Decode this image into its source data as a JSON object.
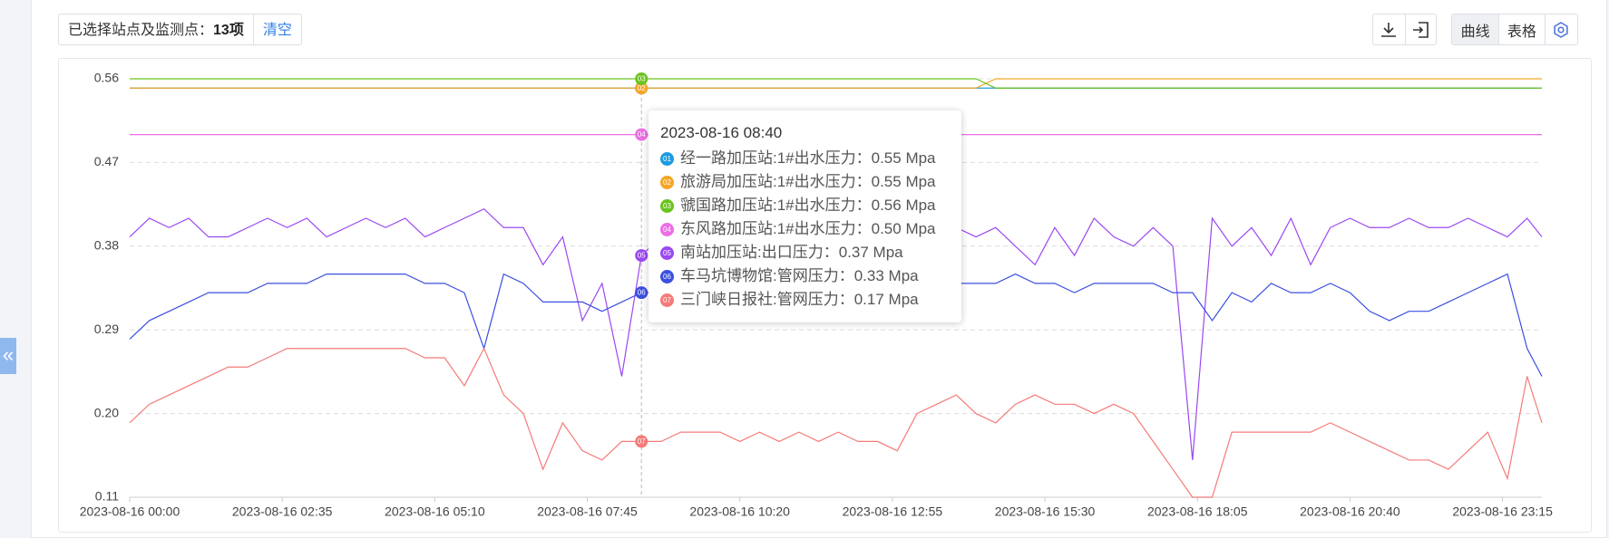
{
  "toolbar": {
    "selected_label": "已选择站点及监测点：",
    "selected_count": "13项",
    "clear": "清空",
    "view_curve": "曲线",
    "view_table": "表格"
  },
  "collapse": "«",
  "tooltip": {
    "title": "2023-08-16 08:40",
    "items": [
      "经一路加压站:1#出水压力：0.55 Mpa",
      "旅游局加压站:1#出水压力：0.55 Mpa",
      "虢国路加压站:1#出水压力：0.56 Mpa",
      "东风路加压站:1#出水压力：0.50 Mpa",
      "南站加压站:出口压力：0.37 Mpa",
      "车马坑博物馆:管网压力：0.33 Mpa",
      "三门峡日报社:管网压力：0.17 Mpa"
    ]
  },
  "chart_data": {
    "type": "line",
    "grid": true,
    "x": [
      "2023-08-16 00:00",
      "2023-08-16 00:20",
      "2023-08-16 00:40",
      "2023-08-16 01:00",
      "2023-08-16 01:20",
      "2023-08-16 01:40",
      "2023-08-16 02:00",
      "2023-08-16 02:20",
      "2023-08-16 02:40",
      "2023-08-16 03:00",
      "2023-08-16 03:20",
      "2023-08-16 03:40",
      "2023-08-16 04:00",
      "2023-08-16 04:20",
      "2023-08-16 04:40",
      "2023-08-16 05:00",
      "2023-08-16 05:20",
      "2023-08-16 05:40",
      "2023-08-16 06:00",
      "2023-08-16 06:20",
      "2023-08-16 06:40",
      "2023-08-16 07:00",
      "2023-08-16 07:20",
      "2023-08-16 07:40",
      "2023-08-16 08:00",
      "2023-08-16 08:20",
      "2023-08-16 08:40",
      "2023-08-16 09:00",
      "2023-08-16 09:20",
      "2023-08-16 09:40",
      "2023-08-16 10:00",
      "2023-08-16 10:20",
      "2023-08-16 10:40",
      "2023-08-16 11:00",
      "2023-08-16 11:20",
      "2023-08-16 11:40",
      "2023-08-16 12:00",
      "2023-08-16 12:20",
      "2023-08-16 12:40",
      "2023-08-16 13:00",
      "2023-08-16 13:20",
      "2023-08-16 13:40",
      "2023-08-16 14:00",
      "2023-08-16 14:20",
      "2023-08-16 14:40",
      "2023-08-16 15:00",
      "2023-08-16 15:20",
      "2023-08-16 15:40",
      "2023-08-16 16:00",
      "2023-08-16 16:20",
      "2023-08-16 16:40",
      "2023-08-16 17:00",
      "2023-08-16 17:20",
      "2023-08-16 17:40",
      "2023-08-16 18:00",
      "2023-08-16 18:20",
      "2023-08-16 18:40",
      "2023-08-16 19:00",
      "2023-08-16 19:20",
      "2023-08-16 19:40",
      "2023-08-16 20:00",
      "2023-08-16 20:20",
      "2023-08-16 20:40",
      "2023-08-16 21:00",
      "2023-08-16 21:20",
      "2023-08-16 21:40",
      "2023-08-16 22:00",
      "2023-08-16 22:20",
      "2023-08-16 22:40",
      "2023-08-16 23:00",
      "2023-08-16 23:20",
      "2023-08-16 23:40",
      "2023-08-16 23:55"
    ],
    "xlim": [
      "2023-08-16 00:00",
      "2023-08-16 23:55"
    ],
    "xticks": [
      "2023-08-16 00:00",
      "2023-08-16 02:35",
      "2023-08-16 05:10",
      "2023-08-16 07:45",
      "2023-08-16 10:20",
      "2023-08-16 12:55",
      "2023-08-16 15:30",
      "2023-08-16 18:05",
      "2023-08-16 20:40",
      "2023-08-16 23:15"
    ],
    "ylim": [
      0.11,
      0.56
    ],
    "yticks": [
      {
        "value": 0.11,
        "label": "0.11"
      },
      {
        "value": 0.2,
        "label": "0.20"
      },
      {
        "value": 0.29,
        "label": "0.29"
      },
      {
        "value": 0.38,
        "label": "0.38"
      },
      {
        "value": 0.47,
        "label": "0.47"
      },
      {
        "value": 0.56,
        "label": "0.56"
      }
    ],
    "series": [
      {
        "marker": "01",
        "color": "#1e9be0",
        "values": [
          0.55,
          0.55,
          0.55,
          0.55,
          0.55,
          0.55,
          0.55,
          0.55,
          0.55,
          0.55,
          0.55,
          0.55,
          0.55,
          0.55,
          0.55,
          0.55,
          0.55,
          0.55,
          0.55,
          0.55,
          0.55,
          0.55,
          0.55,
          0.55,
          0.55,
          0.55,
          0.55,
          0.55,
          0.55,
          0.55,
          0.55,
          0.55,
          0.55,
          0.55,
          0.55,
          0.55,
          0.55,
          0.55,
          0.55,
          0.55,
          0.55,
          0.55,
          0.55,
          0.55,
          0.55,
          0.55,
          0.55,
          0.55,
          0.55,
          0.55,
          0.55,
          0.55,
          0.55,
          0.55,
          0.55,
          0.55,
          0.55,
          0.55,
          0.55,
          0.55,
          0.55,
          0.55,
          0.55,
          0.55,
          0.55,
          0.55,
          0.55,
          0.55,
          0.55,
          0.55,
          0.55,
          0.55,
          0.55
        ]
      },
      {
        "marker": "02",
        "color": "#f5a623",
        "values": [
          0.55,
          0.55,
          0.55,
          0.55,
          0.55,
          0.55,
          0.55,
          0.55,
          0.55,
          0.55,
          0.55,
          0.55,
          0.55,
          0.55,
          0.55,
          0.55,
          0.55,
          0.55,
          0.55,
          0.55,
          0.55,
          0.55,
          0.55,
          0.55,
          0.55,
          0.55,
          0.55,
          0.55,
          0.55,
          0.55,
          0.55,
          0.55,
          0.55,
          0.55,
          0.55,
          0.55,
          0.55,
          0.55,
          0.55,
          0.55,
          0.55,
          0.55,
          0.55,
          0.55,
          0.56,
          0.56,
          0.56,
          0.56,
          0.56,
          0.56,
          0.56,
          0.56,
          0.56,
          0.56,
          0.56,
          0.56,
          0.56,
          0.56,
          0.56,
          0.56,
          0.56,
          0.56,
          0.56,
          0.56,
          0.56,
          0.56,
          0.56,
          0.56,
          0.56,
          0.56,
          0.56,
          0.56,
          0.56
        ]
      },
      {
        "marker": "03",
        "color": "#6ac31e",
        "values": [
          0.56,
          0.56,
          0.56,
          0.56,
          0.56,
          0.56,
          0.56,
          0.56,
          0.56,
          0.56,
          0.56,
          0.56,
          0.56,
          0.56,
          0.56,
          0.56,
          0.56,
          0.56,
          0.56,
          0.56,
          0.56,
          0.56,
          0.56,
          0.56,
          0.56,
          0.56,
          0.56,
          0.56,
          0.56,
          0.56,
          0.56,
          0.56,
          0.56,
          0.56,
          0.56,
          0.56,
          0.56,
          0.56,
          0.56,
          0.56,
          0.56,
          0.56,
          0.56,
          0.56,
          0.55,
          0.55,
          0.55,
          0.55,
          0.55,
          0.55,
          0.55,
          0.55,
          0.55,
          0.55,
          0.55,
          0.55,
          0.55,
          0.55,
          0.55,
          0.55,
          0.55,
          0.55,
          0.55,
          0.55,
          0.55,
          0.55,
          0.55,
          0.55,
          0.55,
          0.55,
          0.55,
          0.55,
          0.55
        ]
      },
      {
        "marker": "04",
        "color": "#ec6ee4",
        "values": [
          0.5,
          0.5,
          0.5,
          0.5,
          0.5,
          0.5,
          0.5,
          0.5,
          0.5,
          0.5,
          0.5,
          0.5,
          0.5,
          0.5,
          0.5,
          0.5,
          0.5,
          0.5,
          0.5,
          0.5,
          0.5,
          0.5,
          0.5,
          0.5,
          0.5,
          0.5,
          0.5,
          0.5,
          0.5,
          0.5,
          0.5,
          0.5,
          0.5,
          0.5,
          0.5,
          0.5,
          0.5,
          0.5,
          0.5,
          0.5,
          0.5,
          0.5,
          0.5,
          0.5,
          0.5,
          0.5,
          0.5,
          0.5,
          0.5,
          0.5,
          0.5,
          0.5,
          0.5,
          0.5,
          0.5,
          0.5,
          0.5,
          0.5,
          0.5,
          0.5,
          0.5,
          0.5,
          0.5,
          0.5,
          0.5,
          0.5,
          0.5,
          0.5,
          0.5,
          0.5,
          0.5,
          0.5,
          0.5
        ]
      },
      {
        "marker": "05",
        "color": "#9b47f2",
        "values": [
          0.39,
          0.41,
          0.4,
          0.41,
          0.39,
          0.39,
          0.4,
          0.41,
          0.4,
          0.41,
          0.39,
          0.4,
          0.41,
          0.4,
          0.41,
          0.39,
          0.4,
          0.41,
          0.42,
          0.4,
          0.4,
          0.36,
          0.39,
          0.3,
          0.34,
          0.24,
          0.37,
          0.39,
          0.4,
          0.41,
          0.39,
          0.4,
          0.39,
          0.41,
          0.4,
          0.39,
          0.4,
          0.41,
          0.39,
          0.4,
          0.41,
          0.39,
          0.4,
          0.39,
          0.4,
          0.38,
          0.36,
          0.4,
          0.37,
          0.41,
          0.39,
          0.38,
          0.4,
          0.38,
          0.15,
          0.41,
          0.38,
          0.4,
          0.37,
          0.41,
          0.36,
          0.4,
          0.41,
          0.4,
          0.4,
          0.41,
          0.4,
          0.4,
          0.41,
          0.4,
          0.39,
          0.41,
          0.39
        ]
      },
      {
        "marker": "06",
        "color": "#3b4fe0",
        "values": [
          0.28,
          0.3,
          0.31,
          0.32,
          0.33,
          0.33,
          0.33,
          0.34,
          0.34,
          0.34,
          0.35,
          0.35,
          0.35,
          0.35,
          0.35,
          0.34,
          0.34,
          0.33,
          0.27,
          0.35,
          0.34,
          0.32,
          0.32,
          0.32,
          0.31,
          0.32,
          0.33,
          0.33,
          0.34,
          0.34,
          0.34,
          0.33,
          0.34,
          0.34,
          0.35,
          0.34,
          0.34,
          0.34,
          0.33,
          0.34,
          0.34,
          0.34,
          0.34,
          0.34,
          0.34,
          0.35,
          0.34,
          0.34,
          0.33,
          0.34,
          0.34,
          0.34,
          0.34,
          0.33,
          0.33,
          0.3,
          0.33,
          0.32,
          0.34,
          0.33,
          0.33,
          0.34,
          0.33,
          0.31,
          0.3,
          0.31,
          0.31,
          0.32,
          0.33,
          0.34,
          0.35,
          0.27,
          0.24
        ]
      },
      {
        "marker": "07",
        "color": "#f47b78",
        "values": [
          0.19,
          0.21,
          0.22,
          0.23,
          0.24,
          0.25,
          0.25,
          0.26,
          0.27,
          0.27,
          0.27,
          0.27,
          0.27,
          0.27,
          0.27,
          0.26,
          0.26,
          0.23,
          0.27,
          0.22,
          0.2,
          0.14,
          0.19,
          0.16,
          0.15,
          0.17,
          0.17,
          0.17,
          0.18,
          0.18,
          0.18,
          0.17,
          0.18,
          0.17,
          0.18,
          0.17,
          0.18,
          0.17,
          0.17,
          0.16,
          0.2,
          0.21,
          0.22,
          0.2,
          0.19,
          0.21,
          0.22,
          0.21,
          0.21,
          0.2,
          0.21,
          0.2,
          0.17,
          0.14,
          0.11,
          0.11,
          0.18,
          0.18,
          0.18,
          0.18,
          0.18,
          0.19,
          0.18,
          0.17,
          0.16,
          0.15,
          0.15,
          0.14,
          0.16,
          0.18,
          0.13,
          0.24,
          0.19
        ]
      }
    ]
  }
}
